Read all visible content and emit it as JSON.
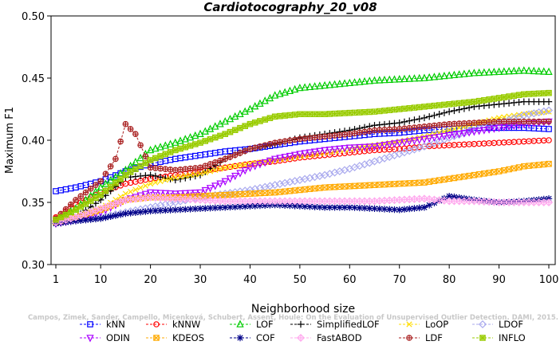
{
  "chart_data": {
    "type": "line",
    "title": "Cardiotocography_20_v08",
    "xlabel": "Neighborhood size",
    "ylabel": "Maximum F1",
    "xlim": [
      1,
      100
    ],
    "ylim": [
      0.3,
      0.5
    ],
    "xticks": [
      1,
      10,
      20,
      30,
      40,
      50,
      60,
      70,
      80,
      90,
      100
    ],
    "yticks": [
      0.3,
      0.35,
      0.4,
      0.45,
      0.5
    ],
    "ytick_labels": [
      "0.30",
      "0.35",
      "0.40",
      "0.45",
      "0.50"
    ],
    "grid": false,
    "legend_position": "bottom",
    "watermark": "Campos, Zimek, Sander, Campello, Micenková, Schubert, Assent, Houle: On the Evaluation of Unsupervised Outlier Detection. DAMI, 2015.",
    "series": [
      {
        "name": "kNN",
        "color": "#0000ff",
        "marker": "square",
        "points": [
          [
            1,
            0.359
          ],
          [
            5,
            0.362
          ],
          [
            10,
            0.367
          ],
          [
            15,
            0.375
          ],
          [
            20,
            0.381
          ],
          [
            25,
            0.385
          ],
          [
            30,
            0.388
          ],
          [
            35,
            0.391
          ],
          [
            40,
            0.393
          ],
          [
            45,
            0.396
          ],
          [
            50,
            0.399
          ],
          [
            55,
            0.401
          ],
          [
            60,
            0.403
          ],
          [
            65,
            0.405
          ],
          [
            70,
            0.406
          ],
          [
            75,
            0.408
          ],
          [
            80,
            0.409
          ],
          [
            85,
            0.41
          ],
          [
            90,
            0.41
          ],
          [
            95,
            0.41
          ],
          [
            100,
            0.409
          ]
        ]
      },
      {
        "name": "kNNW",
        "color": "#ff0000",
        "marker": "circle",
        "points": [
          [
            1,
            0.338
          ],
          [
            5,
            0.348
          ],
          [
            10,
            0.358
          ],
          [
            15,
            0.365
          ],
          [
            20,
            0.369
          ],
          [
            25,
            0.372
          ],
          [
            30,
            0.375
          ],
          [
            35,
            0.378
          ],
          [
            40,
            0.381
          ],
          [
            45,
            0.383
          ],
          [
            50,
            0.386
          ],
          [
            55,
            0.388
          ],
          [
            60,
            0.39
          ],
          [
            65,
            0.392
          ],
          [
            70,
            0.393
          ],
          [
            75,
            0.395
          ],
          [
            80,
            0.396
          ],
          [
            85,
            0.397
          ],
          [
            90,
            0.398
          ],
          [
            95,
            0.399
          ],
          [
            100,
            0.4
          ]
        ]
      },
      {
        "name": "LOF",
        "color": "#00cc00",
        "marker": "triangle",
        "points": [
          [
            1,
            0.336
          ],
          [
            5,
            0.345
          ],
          [
            10,
            0.362
          ],
          [
            15,
            0.376
          ],
          [
            20,
            0.392
          ],
          [
            25,
            0.398
          ],
          [
            30,
            0.405
          ],
          [
            35,
            0.415
          ],
          [
            40,
            0.425
          ],
          [
            45,
            0.436
          ],
          [
            50,
            0.442
          ],
          [
            55,
            0.444
          ],
          [
            60,
            0.446
          ],
          [
            65,
            0.448
          ],
          [
            70,
            0.449
          ],
          [
            75,
            0.45
          ],
          [
            80,
            0.452
          ],
          [
            85,
            0.454
          ],
          [
            90,
            0.455
          ],
          [
            95,
            0.456
          ],
          [
            100,
            0.455
          ]
        ]
      },
      {
        "name": "SimplifiedLOF",
        "color": "#000000",
        "marker": "plus",
        "points": [
          [
            1,
            0.333
          ],
          [
            5,
            0.338
          ],
          [
            10,
            0.352
          ],
          [
            15,
            0.37
          ],
          [
            20,
            0.372
          ],
          [
            25,
            0.368
          ],
          [
            30,
            0.372
          ],
          [
            35,
            0.385
          ],
          [
            40,
            0.393
          ],
          [
            45,
            0.397
          ],
          [
            50,
            0.402
          ],
          [
            55,
            0.405
          ],
          [
            60,
            0.408
          ],
          [
            65,
            0.412
          ],
          [
            70,
            0.414
          ],
          [
            75,
            0.418
          ],
          [
            80,
            0.423
          ],
          [
            85,
            0.427
          ],
          [
            90,
            0.429
          ],
          [
            95,
            0.431
          ],
          [
            100,
            0.431
          ]
        ]
      },
      {
        "name": "LoOP",
        "color": "#ffdd00",
        "marker": "x",
        "points": [
          [
            1,
            0.334
          ],
          [
            5,
            0.338
          ],
          [
            10,
            0.345
          ],
          [
            15,
            0.357
          ],
          [
            20,
            0.365
          ],
          [
            25,
            0.37
          ],
          [
            30,
            0.373
          ],
          [
            35,
            0.378
          ],
          [
            40,
            0.381
          ],
          [
            45,
            0.384
          ],
          [
            50,
            0.387
          ],
          [
            55,
            0.39
          ],
          [
            60,
            0.393
          ],
          [
            65,
            0.396
          ],
          [
            70,
            0.399
          ],
          [
            75,
            0.403
          ],
          [
            80,
            0.408
          ],
          [
            85,
            0.413
          ],
          [
            90,
            0.418
          ],
          [
            95,
            0.421
          ],
          [
            100,
            0.423
          ]
        ]
      },
      {
        "name": "LDOF",
        "color": "#aaaaee",
        "marker": "diamond",
        "points": [
          [
            1,
            0.335
          ],
          [
            5,
            0.336
          ],
          [
            10,
            0.338
          ],
          [
            15,
            0.342
          ],
          [
            20,
            0.346
          ],
          [
            25,
            0.35
          ],
          [
            30,
            0.354
          ],
          [
            35,
            0.357
          ],
          [
            40,
            0.36
          ],
          [
            45,
            0.364
          ],
          [
            50,
            0.368
          ],
          [
            55,
            0.372
          ],
          [
            60,
            0.377
          ],
          [
            65,
            0.383
          ],
          [
            70,
            0.389
          ],
          [
            75,
            0.395
          ],
          [
            80,
            0.402
          ],
          [
            85,
            0.408
          ],
          [
            90,
            0.414
          ],
          [
            95,
            0.42
          ],
          [
            100,
            0.424
          ]
        ]
      },
      {
        "name": "ODIN",
        "color": "#aa00ff",
        "marker": "triangle-down",
        "points": [
          [
            1,
            0.333
          ],
          [
            5,
            0.336
          ],
          [
            10,
            0.342
          ],
          [
            15,
            0.352
          ],
          [
            20,
            0.358
          ],
          [
            25,
            0.357
          ],
          [
            30,
            0.358
          ],
          [
            35,
            0.367
          ],
          [
            40,
            0.378
          ],
          [
            45,
            0.385
          ],
          [
            50,
            0.389
          ],
          [
            55,
            0.392
          ],
          [
            60,
            0.394
          ],
          [
            65,
            0.395
          ],
          [
            70,
            0.398
          ],
          [
            75,
            0.401
          ],
          [
            80,
            0.404
          ],
          [
            85,
            0.407
          ],
          [
            90,
            0.41
          ],
          [
            95,
            0.413
          ],
          [
            100,
            0.415
          ]
        ]
      },
      {
        "name": "KDEOS",
        "color": "#ffaa00",
        "marker": "square-x",
        "points": [
          [
            1,
            0.334
          ],
          [
            5,
            0.338
          ],
          [
            10,
            0.344
          ],
          [
            15,
            0.352
          ],
          [
            20,
            0.354
          ],
          [
            25,
            0.354
          ],
          [
            30,
            0.355
          ],
          [
            35,
            0.356
          ],
          [
            40,
            0.357
          ],
          [
            45,
            0.358
          ],
          [
            50,
            0.36
          ],
          [
            55,
            0.362
          ],
          [
            60,
            0.363
          ],
          [
            65,
            0.364
          ],
          [
            70,
            0.365
          ],
          [
            75,
            0.366
          ],
          [
            80,
            0.369
          ],
          [
            85,
            0.372
          ],
          [
            90,
            0.375
          ],
          [
            95,
            0.379
          ],
          [
            100,
            0.381
          ]
        ]
      },
      {
        "name": "COF",
        "color": "#000088",
        "marker": "asterisk",
        "points": [
          [
            1,
            0.333
          ],
          [
            5,
            0.335
          ],
          [
            10,
            0.337
          ],
          [
            15,
            0.341
          ],
          [
            20,
            0.343
          ],
          [
            25,
            0.344
          ],
          [
            30,
            0.345
          ],
          [
            35,
            0.346
          ],
          [
            40,
            0.347
          ],
          [
            45,
            0.348
          ],
          [
            50,
            0.347
          ],
          [
            55,
            0.346
          ],
          [
            60,
            0.346
          ],
          [
            65,
            0.345
          ],
          [
            70,
            0.344
          ],
          [
            75,
            0.346
          ],
          [
            80,
            0.355
          ],
          [
            85,
            0.352
          ],
          [
            90,
            0.35
          ],
          [
            95,
            0.351
          ],
          [
            100,
            0.353
          ]
        ]
      },
      {
        "name": "FastABOD",
        "color": "#ffaaee",
        "marker": "diamond-plus",
        "points": [
          [
            1,
            0.334
          ],
          [
            5,
            0.338
          ],
          [
            10,
            0.345
          ],
          [
            15,
            0.352
          ],
          [
            20,
            0.354
          ],
          [
            25,
            0.353
          ],
          [
            30,
            0.352
          ],
          [
            35,
            0.351
          ],
          [
            40,
            0.351
          ],
          [
            45,
            0.351
          ],
          [
            50,
            0.351
          ],
          [
            55,
            0.351
          ],
          [
            60,
            0.351
          ],
          [
            65,
            0.351
          ],
          [
            70,
            0.352
          ],
          [
            75,
            0.353
          ],
          [
            80,
            0.351
          ],
          [
            85,
            0.351
          ],
          [
            90,
            0.35
          ],
          [
            95,
            0.35
          ],
          [
            100,
            0.35
          ]
        ]
      },
      {
        "name": "LDF",
        "color": "#aa2222",
        "marker": "circle-plus",
        "points": [
          [
            1,
            0.337
          ],
          [
            5,
            0.352
          ],
          [
            10,
            0.367
          ],
          [
            13,
            0.385
          ],
          [
            15,
            0.413
          ],
          [
            17,
            0.405
          ],
          [
            20,
            0.378
          ],
          [
            25,
            0.376
          ],
          [
            30,
            0.378
          ],
          [
            35,
            0.385
          ],
          [
            40,
            0.393
          ],
          [
            45,
            0.398
          ],
          [
            50,
            0.401
          ],
          [
            55,
            0.403
          ],
          [
            60,
            0.405
          ],
          [
            65,
            0.408
          ],
          [
            70,
            0.409
          ],
          [
            75,
            0.411
          ],
          [
            80,
            0.413
          ],
          [
            85,
            0.414
          ],
          [
            90,
            0.415
          ],
          [
            95,
            0.415
          ],
          [
            100,
            0.415
          ]
        ]
      },
      {
        "name": "INFLO",
        "color": "#99cc00",
        "marker": "star-box",
        "points": [
          [
            1,
            0.336
          ],
          [
            5,
            0.344
          ],
          [
            10,
            0.356
          ],
          [
            15,
            0.372
          ],
          [
            20,
            0.384
          ],
          [
            25,
            0.392
          ],
          [
            30,
            0.398
          ],
          [
            35,
            0.405
          ],
          [
            40,
            0.413
          ],
          [
            45,
            0.419
          ],
          [
            50,
            0.421
          ],
          [
            55,
            0.421
          ],
          [
            60,
            0.422
          ],
          [
            65,
            0.423
          ],
          [
            70,
            0.425
          ],
          [
            75,
            0.427
          ],
          [
            80,
            0.429
          ],
          [
            85,
            0.431
          ],
          [
            90,
            0.434
          ],
          [
            95,
            0.437
          ],
          [
            100,
            0.438
          ]
        ]
      }
    ]
  }
}
